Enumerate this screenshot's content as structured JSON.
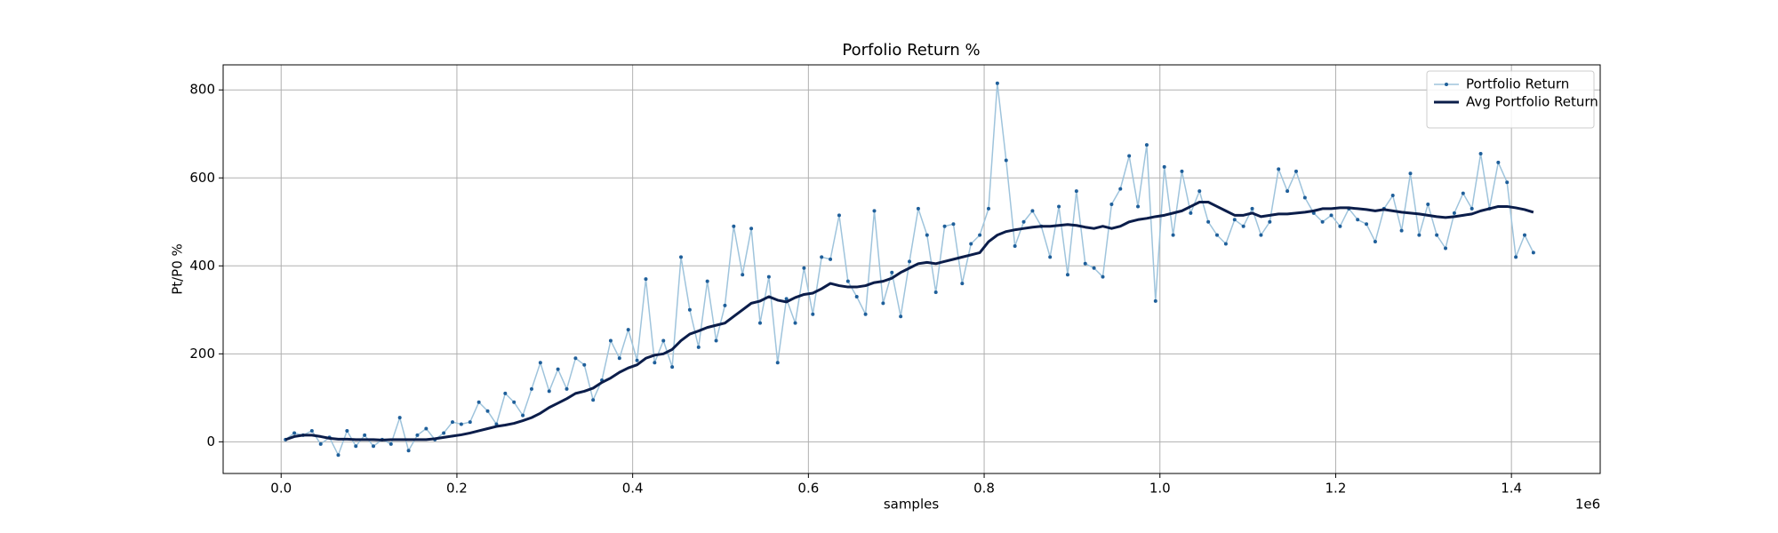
{
  "chart_data": {
    "type": "line",
    "title": "Porfolio Return %",
    "xlabel": "samples",
    "ylabel": "Pt/P0 %",
    "x_offset_label": "1e6",
    "x": [
      5000,
      15000,
      25000,
      35000,
      45000,
      55000,
      65000,
      75000,
      85000,
      95000,
      105000,
      115000,
      125000,
      135000,
      145000,
      155000,
      165000,
      175000,
      185000,
      195000,
      205000,
      215000,
      225000,
      235000,
      245000,
      255000,
      265000,
      275000,
      285000,
      295000,
      305000,
      315000,
      325000,
      335000,
      345000,
      355000,
      365000,
      375000,
      385000,
      395000,
      405000,
      415000,
      425000,
      435000,
      445000,
      455000,
      465000,
      475000,
      485000,
      495000,
      505000,
      515000,
      525000,
      535000,
      545000,
      555000,
      565000,
      575000,
      585000,
      595000,
      605000,
      615000,
      625000,
      635000,
      645000,
      655000,
      665000,
      675000,
      685000,
      695000,
      705000,
      715000,
      725000,
      735000,
      745000,
      755000,
      765000,
      775000,
      785000,
      795000,
      805000,
      815000,
      825000,
      835000,
      845000,
      855000,
      865000,
      875000,
      885000,
      895000,
      905000,
      915000,
      925000,
      935000,
      945000,
      955000,
      965000,
      975000,
      985000,
      995000,
      1005000,
      1015000,
      1025000,
      1035000,
      1045000,
      1055000,
      1065000,
      1075000,
      1085000,
      1095000,
      1105000,
      1115000,
      1125000,
      1135000,
      1145000,
      1155000,
      1165000,
      1175000,
      1185000,
      1195000,
      1205000,
      1215000,
      1225000,
      1235000,
      1245000,
      1255000,
      1265000,
      1275000,
      1285000,
      1295000,
      1305000,
      1315000,
      1325000,
      1335000,
      1345000,
      1355000,
      1365000,
      1375000,
      1385000,
      1395000,
      1405000,
      1415000,
      1425000
    ],
    "series": [
      {
        "name": "Portfolio Return",
        "color": "#9fc4dc",
        "marker_color": "#1f5f9a",
        "values": [
          5,
          20,
          15,
          25,
          -5,
          10,
          -30,
          25,
          -10,
          15,
          -10,
          5,
          -5,
          55,
          -20,
          15,
          30,
          5,
          20,
          45,
          40,
          45,
          90,
          70,
          40,
          110,
          90,
          60,
          120,
          180,
          115,
          165,
          120,
          190,
          175,
          95,
          140,
          230,
          190,
          255,
          185,
          370,
          180,
          230,
          170,
          420,
          300,
          215,
          365,
          230,
          310,
          490,
          380,
          485,
          270,
          375,
          180,
          325,
          270,
          395,
          290,
          420,
          415,
          515,
          365,
          330,
          290,
          525,
          315,
          385,
          285,
          410,
          530,
          470,
          340,
          490,
          495,
          360,
          450,
          470,
          530,
          815,
          640,
          445,
          500,
          525,
          490,
          420,
          535,
          380,
          570,
          405,
          395,
          375,
          540,
          575,
          650,
          535,
          675,
          320,
          625,
          470,
          615,
          520,
          570,
          500,
          470,
          450,
          505,
          490,
          530,
          470,
          500,
          620,
          570,
          615,
          555,
          520,
          500,
          515,
          490,
          530,
          505,
          495,
          455,
          530,
          560,
          480,
          610,
          470,
          540,
          470,
          440,
          520,
          565,
          530,
          655,
          530,
          635,
          590,
          420,
          470,
          430
        ]
      },
      {
        "name": "Avg Portfolio Return",
        "color": "#0b1d4a",
        "values": [
          5,
          12,
          15,
          15,
          12,
          8,
          6,
          6,
          5,
          5,
          5,
          4,
          5,
          5,
          5,
          5,
          5,
          7,
          10,
          13,
          16,
          20,
          25,
          30,
          35,
          38,
          42,
          48,
          55,
          65,
          78,
          88,
          98,
          110,
          115,
          122,
          135,
          145,
          158,
          168,
          175,
          190,
          197,
          200,
          210,
          230,
          245,
          252,
          260,
          265,
          270,
          285,
          300,
          315,
          320,
          330,
          322,
          318,
          328,
          335,
          338,
          348,
          360,
          355,
          352,
          352,
          355,
          362,
          365,
          372,
          385,
          395,
          405,
          408,
          405,
          410,
          415,
          420,
          425,
          430,
          455,
          470,
          478,
          482,
          485,
          488,
          490,
          490,
          492,
          494,
          492,
          488,
          485,
          490,
          485,
          490,
          500,
          505,
          508,
          512,
          515,
          520,
          525,
          535,
          545,
          545,
          535,
          525,
          515,
          515,
          520,
          512,
          515,
          518,
          518,
          520,
          522,
          525,
          530,
          530,
          532,
          532,
          530,
          528,
          525,
          528,
          525,
          522,
          520,
          518,
          515,
          512,
          510,
          512,
          515,
          518,
          525,
          530,
          535,
          535,
          532,
          528,
          522
        ]
      }
    ],
    "xlim": [
      -66000,
      1501000
    ],
    "ylim": [
      -72,
      857
    ],
    "xticks": [
      {
        "value": 0,
        "label": "0.0"
      },
      {
        "value": 200000,
        "label": "0.2"
      },
      {
        "value": 400000,
        "label": "0.4"
      },
      {
        "value": 600000,
        "label": "0.6"
      },
      {
        "value": 800000,
        "label": "0.8"
      },
      {
        "value": 1000000,
        "label": "1.0"
      },
      {
        "value": 1200000,
        "label": "1.2"
      },
      {
        "value": 1400000,
        "label": "1.4"
      }
    ],
    "yticks": [
      0,
      200,
      400,
      600,
      800
    ],
    "grid": true,
    "legend": "upper right"
  }
}
